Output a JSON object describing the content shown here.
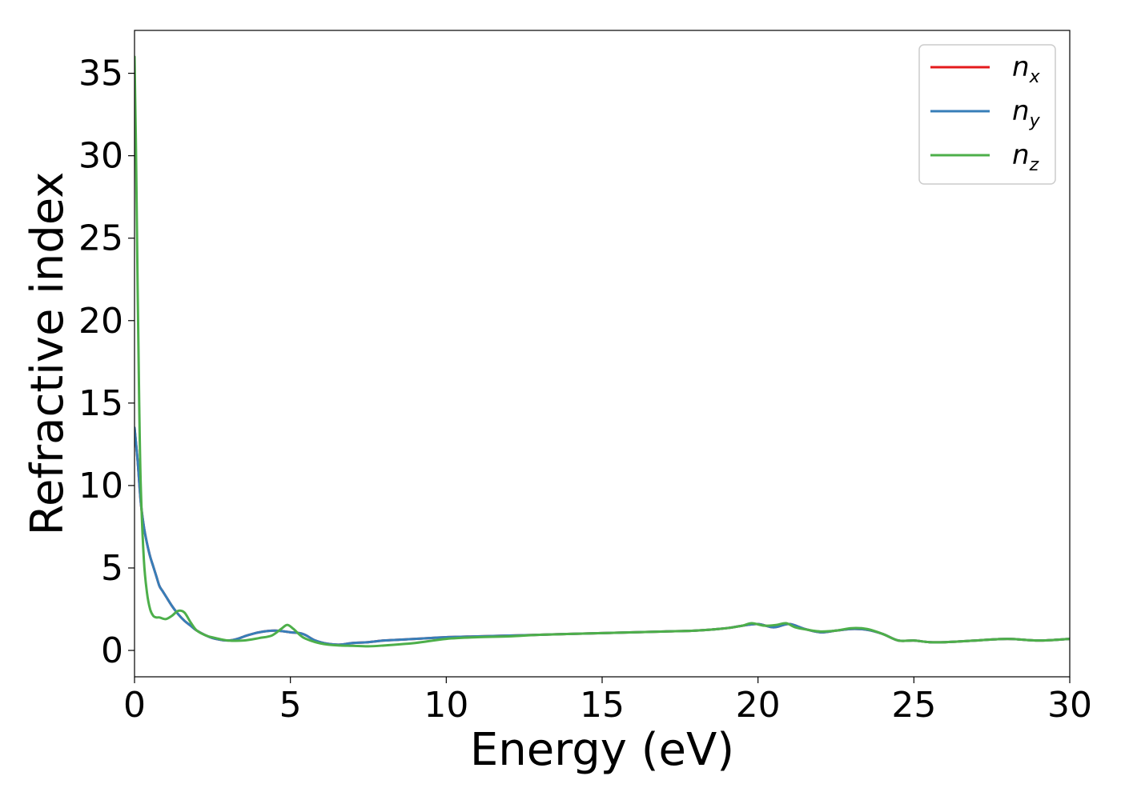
{
  "chart_data": {
    "type": "line",
    "xlabel": "Energy (eV)",
    "ylabel": "Refractive index",
    "xlim": [
      0,
      30
    ],
    "ylim": [
      -1.6,
      37.6
    ],
    "xticks": [
      0,
      5,
      10,
      15,
      20,
      25,
      30
    ],
    "yticks": [
      0,
      5,
      10,
      15,
      20,
      25,
      30,
      35
    ],
    "grid": false,
    "legend_position": "top-right",
    "series": [
      {
        "name": "n_x",
        "legend_base": "n",
        "legend_sub": "x",
        "color": "#e41a1c",
        "x": [
          0,
          0.1,
          0.2,
          0.3,
          0.4,
          0.5,
          0.6,
          0.7,
          0.8,
          0.9,
          1.0,
          1.2,
          1.4,
          1.6,
          1.8,
          2.0,
          2.3,
          2.6,
          3.0,
          3.3,
          3.6,
          4.0,
          4.5,
          5.0,
          5.4,
          5.8,
          6.2,
          6.6,
          7.0,
          7.5,
          8.0,
          8.5,
          9.0,
          10,
          11,
          12,
          13,
          14,
          15,
          16,
          17,
          18,
          19,
          19.5,
          20,
          20.5,
          21,
          21.5,
          22,
          22.5,
          23,
          23.5,
          24,
          24.5,
          25,
          25.5,
          26,
          27,
          28,
          29,
          30
        ],
        "y": [
          13.5,
          11.5,
          9.0,
          7.5,
          6.5,
          5.7,
          5.1,
          4.5,
          3.9,
          3.6,
          3.3,
          2.7,
          2.2,
          1.8,
          1.5,
          1.2,
          0.9,
          0.7,
          0.6,
          0.7,
          0.9,
          1.1,
          1.2,
          1.1,
          1.0,
          0.6,
          0.4,
          0.35,
          0.45,
          0.5,
          0.6,
          0.65,
          0.7,
          0.8,
          0.85,
          0.9,
          0.95,
          1.0,
          1.05,
          1.1,
          1.15,
          1.2,
          1.35,
          1.5,
          1.6,
          1.4,
          1.6,
          1.3,
          1.1,
          1.2,
          1.3,
          1.25,
          1.0,
          0.6,
          0.6,
          0.5,
          0.5,
          0.6,
          0.7,
          0.6,
          0.7
        ]
      },
      {
        "name": "n_y",
        "legend_base": "n",
        "legend_sub": "y",
        "color": "#377eb8",
        "x": [
          0,
          0.1,
          0.2,
          0.3,
          0.4,
          0.5,
          0.6,
          0.7,
          0.8,
          0.9,
          1.0,
          1.2,
          1.4,
          1.6,
          1.8,
          2.0,
          2.3,
          2.6,
          3.0,
          3.3,
          3.6,
          4.0,
          4.5,
          5.0,
          5.4,
          5.8,
          6.2,
          6.6,
          7.0,
          7.5,
          8.0,
          8.5,
          9.0,
          10,
          11,
          12,
          13,
          14,
          15,
          16,
          17,
          18,
          19,
          19.5,
          20,
          20.5,
          21,
          21.5,
          22,
          22.5,
          23,
          23.5,
          24,
          24.5,
          25,
          25.5,
          26,
          27,
          28,
          29,
          30
        ],
        "y": [
          13.5,
          11.5,
          9.0,
          7.5,
          6.5,
          5.7,
          5.1,
          4.5,
          3.9,
          3.6,
          3.3,
          2.7,
          2.2,
          1.8,
          1.5,
          1.2,
          0.9,
          0.7,
          0.6,
          0.7,
          0.9,
          1.1,
          1.2,
          1.1,
          1.0,
          0.6,
          0.4,
          0.35,
          0.45,
          0.5,
          0.6,
          0.65,
          0.7,
          0.8,
          0.85,
          0.9,
          0.95,
          1.0,
          1.05,
          1.1,
          1.15,
          1.2,
          1.35,
          1.5,
          1.6,
          1.4,
          1.6,
          1.3,
          1.1,
          1.2,
          1.3,
          1.25,
          1.0,
          0.6,
          0.6,
          0.5,
          0.5,
          0.6,
          0.7,
          0.6,
          0.7
        ]
      },
      {
        "name": "n_z",
        "legend_base": "n",
        "legend_sub": "z",
        "color": "#4daf4a",
        "x": [
          0,
          0.05,
          0.1,
          0.15,
          0.2,
          0.3,
          0.4,
          0.5,
          0.6,
          0.7,
          0.8,
          1.0,
          1.2,
          1.4,
          1.6,
          1.8,
          2.0,
          2.3,
          2.6,
          3.0,
          3.5,
          4.0,
          4.4,
          4.7,
          4.9,
          5.1,
          5.4,
          5.8,
          6.2,
          6.6,
          7.0,
          7.5,
          8.0,
          9.0,
          10,
          11,
          12,
          13,
          14,
          15,
          16,
          17,
          18,
          19,
          19.5,
          19.8,
          20.2,
          20.6,
          20.9,
          21.2,
          21.6,
          22,
          22.5,
          23,
          23.5,
          24,
          24.5,
          25,
          25.5,
          26,
          27,
          28,
          29,
          30
        ],
        "y": [
          36,
          30,
          22,
          15,
          10,
          5.5,
          3.5,
          2.5,
          2.1,
          2.0,
          2.0,
          1.9,
          2.1,
          2.4,
          2.3,
          1.7,
          1.2,
          0.9,
          0.75,
          0.6,
          0.6,
          0.75,
          0.9,
          1.3,
          1.55,
          1.3,
          0.8,
          0.5,
          0.35,
          0.3,
          0.28,
          0.25,
          0.3,
          0.45,
          0.7,
          0.8,
          0.85,
          0.95,
          1.0,
          1.05,
          1.1,
          1.15,
          1.2,
          1.35,
          1.5,
          1.65,
          1.5,
          1.55,
          1.65,
          1.4,
          1.25,
          1.15,
          1.2,
          1.35,
          1.3,
          1.0,
          0.6,
          0.6,
          0.5,
          0.5,
          0.6,
          0.7,
          0.6,
          0.7
        ]
      }
    ]
  }
}
